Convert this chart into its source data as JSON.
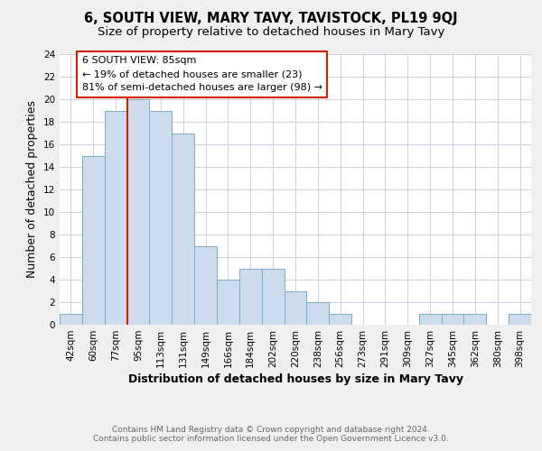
{
  "title": "6, SOUTH VIEW, MARY TAVY, TAVISTOCK, PL19 9QJ",
  "subtitle": "Size of property relative to detached houses in Mary Tavy",
  "xlabel": "Distribution of detached houses by size in Mary Tavy",
  "ylabel": "Number of detached properties",
  "bar_color": "#ccdcec",
  "bar_edge_color": "#7aaac8",
  "bin_labels": [
    "42sqm",
    "60sqm",
    "77sqm",
    "95sqm",
    "113sqm",
    "131sqm",
    "149sqm",
    "166sqm",
    "184sqm",
    "202sqm",
    "220sqm",
    "238sqm",
    "256sqm",
    "273sqm",
    "291sqm",
    "309sqm",
    "327sqm",
    "345sqm",
    "362sqm",
    "380sqm",
    "398sqm"
  ],
  "bar_heights": [
    1,
    15,
    19,
    20,
    19,
    17,
    7,
    4,
    5,
    5,
    3,
    2,
    1,
    0,
    0,
    0,
    1,
    1,
    1,
    0,
    1
  ],
  "ylim": [
    0,
    24
  ],
  "yticks": [
    0,
    2,
    4,
    6,
    8,
    10,
    12,
    14,
    16,
    18,
    20,
    22,
    24
  ],
  "property_bin_index": 2,
  "annotation_line1": "6 SOUTH VIEW: 85sqm",
  "annotation_line2": "← 19% of detached houses are smaller (23)",
  "annotation_line3": "81% of semi-detached houses are larger (98) →",
  "footnote1": "Contains HM Land Registry data © Crown copyright and database right 2024.",
  "footnote2": "Contains public sector information licensed under the Open Government Licence v3.0.",
  "background_color": "#f0f0f0",
  "plot_bg_color": "#ffffff",
  "grid_color": "#c8c8d8",
  "red_line_color": "#cc2200",
  "box_edge_color": "#cc2200",
  "title_fontsize": 10.5,
  "subtitle_fontsize": 9.5,
  "axis_label_fontsize": 9,
  "tick_fontsize": 7.5,
  "annotation_fontsize": 8,
  "footnote_fontsize": 6.5
}
